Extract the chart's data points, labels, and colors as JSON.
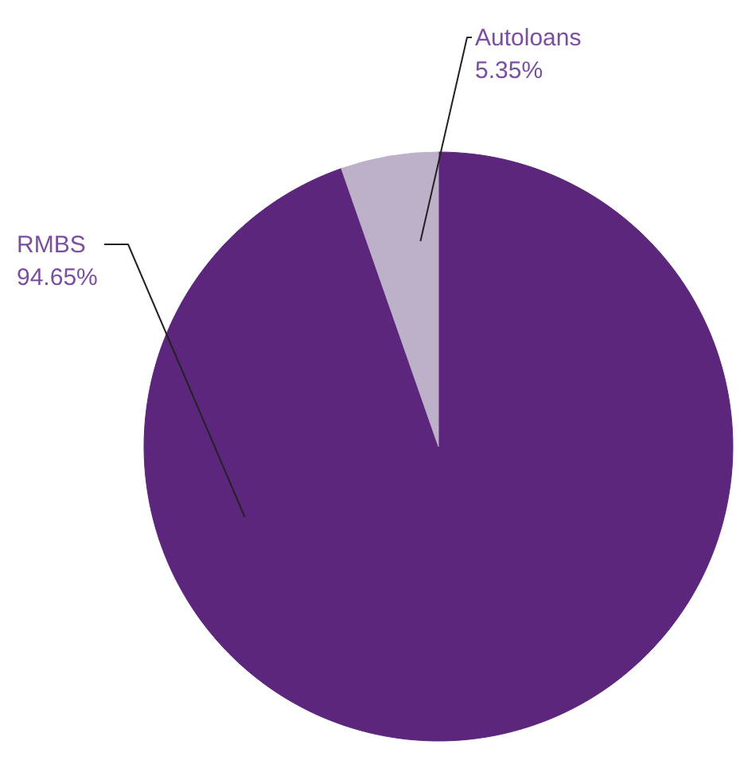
{
  "chart_data": {
    "type": "pie",
    "categories": [
      "RMBS",
      "Autoloans"
    ],
    "values": [
      94.65,
      5.35
    ],
    "colors": [
      "#5c267c",
      "#bdb0c9"
    ],
    "value_labels": [
      "94.65%",
      "5.35%"
    ]
  }
}
